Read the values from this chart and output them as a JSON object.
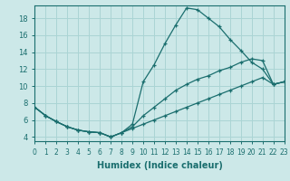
{
  "bg_color": "#cce8e8",
  "grid_color": "#aad4d4",
  "line_color": "#1a6e6e",
  "xlabel": "Humidex (Indice chaleur)",
  "xlim": [
    0,
    23
  ],
  "ylim": [
    3.5,
    19.5
  ],
  "xticks": [
    0,
    1,
    2,
    3,
    4,
    5,
    6,
    7,
    8,
    9,
    10,
    11,
    12,
    13,
    14,
    15,
    16,
    17,
    18,
    19,
    20,
    21,
    22,
    23
  ],
  "yticks": [
    4,
    6,
    8,
    10,
    12,
    14,
    16,
    18
  ],
  "curve1_x": [
    0,
    1,
    2,
    3,
    4,
    5,
    6,
    7,
    8,
    9,
    10,
    11,
    12,
    13,
    14,
    15,
    16,
    17,
    18,
    19,
    20,
    21,
    22,
    23
  ],
  "curve1_y": [
    7.5,
    6.5,
    5.8,
    5.2,
    4.8,
    4.6,
    4.5,
    4.0,
    4.5,
    5.5,
    10.5,
    12.5,
    15.0,
    17.2,
    19.2,
    19.0,
    18.0,
    17.0,
    15.5,
    14.2,
    12.8,
    12.0,
    10.2,
    10.5
  ],
  "curve2_x": [
    0,
    1,
    2,
    3,
    4,
    5,
    6,
    7,
    8,
    9,
    10,
    11,
    12,
    13,
    14,
    15,
    16,
    17,
    18,
    19,
    20,
    21,
    22,
    23
  ],
  "curve2_y": [
    7.5,
    6.5,
    5.8,
    5.2,
    4.8,
    4.6,
    4.5,
    4.0,
    4.5,
    5.0,
    5.5,
    6.0,
    6.5,
    7.0,
    7.5,
    8.0,
    8.5,
    9.0,
    9.5,
    10.0,
    10.5,
    11.0,
    10.2,
    10.5
  ],
  "curve3_x": [
    0,
    1,
    2,
    3,
    4,
    5,
    6,
    7,
    8,
    9,
    10,
    11,
    12,
    13,
    14,
    15,
    16,
    17,
    18,
    19,
    20,
    21,
    22,
    23
  ],
  "curve3_y": [
    7.5,
    6.5,
    5.8,
    5.2,
    4.8,
    4.6,
    4.5,
    4.0,
    4.5,
    5.2,
    6.5,
    7.5,
    8.5,
    9.5,
    10.2,
    10.8,
    11.2,
    11.8,
    12.2,
    12.8,
    13.2,
    13.0,
    10.2,
    10.5
  ],
  "tick_fontsize_x": 5.5,
  "tick_fontsize_y": 6.0,
  "xlabel_fontsize": 7.0
}
